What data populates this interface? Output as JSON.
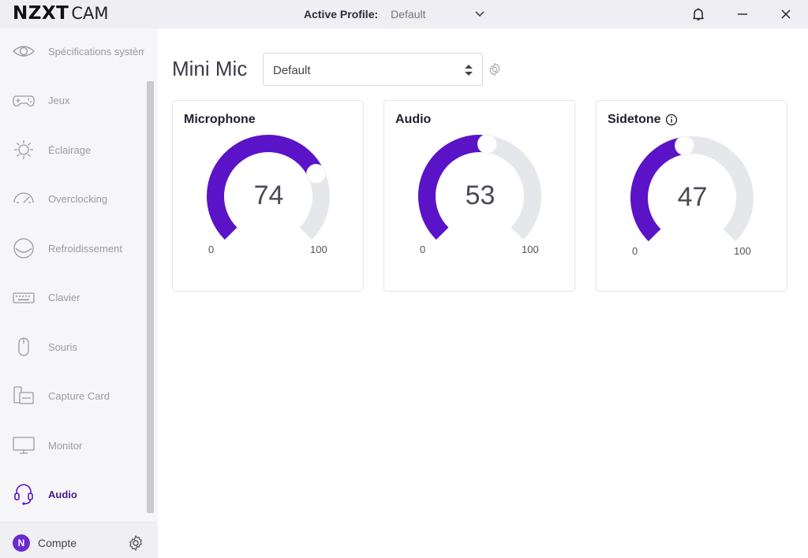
{
  "titlebar": {
    "brand_bold": "NZXT",
    "brand_light": "CAM",
    "profile_label": "Active Profile:",
    "profile_value": "Default",
    "icons": [
      "bell-icon",
      "minimize-icon",
      "close-icon"
    ]
  },
  "sidebar": {
    "items": [
      {
        "label": "Spécifications système",
        "icon": "eye-icon"
      },
      {
        "label": "Jeux",
        "icon": "gamepad-icon"
      },
      {
        "label": "Éclairage",
        "icon": "sun-icon"
      },
      {
        "label": "Overclocking",
        "icon": "gauge-icon"
      },
      {
        "label": "Refroidissement",
        "icon": "cooler-icon"
      },
      {
        "label": "Clavier",
        "icon": "keyboard-icon"
      },
      {
        "label": "Souris",
        "icon": "mouse-icon"
      },
      {
        "label": "Capture Card",
        "icon": "capture-card-icon"
      },
      {
        "label": "Monitor",
        "icon": "monitor-icon"
      },
      {
        "label": "Audio",
        "icon": "headset-icon",
        "active": true
      }
    ],
    "account": {
      "initial": "N",
      "label": "Compte"
    }
  },
  "main": {
    "device_name": "Mini Mic",
    "profile_select": "Default",
    "cards": [
      {
        "title": "Microphone",
        "value": 74,
        "min": "0",
        "max": "100",
        "info": false
      },
      {
        "title": "Audio",
        "value": 53,
        "min": "0",
        "max": "100",
        "info": false
      },
      {
        "title": "Sidetone",
        "value": 47,
        "min": "0",
        "max": "100",
        "info": true
      }
    ]
  },
  "colors": {
    "accent": "#5b13c8",
    "track": "#e5e7eb",
    "active_nav": "#4a1a8c",
    "sidebar_bg": "#f6f6f8"
  }
}
